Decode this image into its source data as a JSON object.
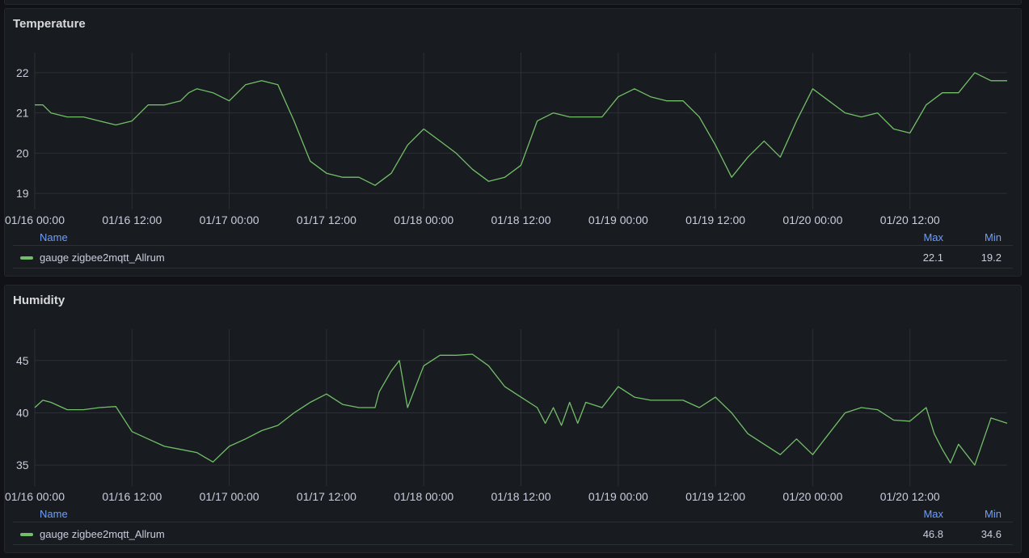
{
  "colors": {
    "series": "#73bf69",
    "grid": "#2c2f36",
    "text": "#ccccdc",
    "legend_header": "#6e9fff"
  },
  "legend_headers": {
    "name": "Name",
    "max": "Max",
    "min": "Min"
  },
  "chart_data": [
    {
      "type": "line",
      "title": "Temperature",
      "x_ticks": [
        "01/16 00:00",
        "01/16 12:00",
        "01/17 00:00",
        "01/17 12:00",
        "01/18 00:00",
        "01/18 12:00",
        "01/19 00:00",
        "01/19 12:00",
        "01/20 00:00",
        "01/20 12:00"
      ],
      "y_ticks": [
        19,
        20,
        21,
        22
      ],
      "ylim": [
        18.6,
        22.5
      ],
      "xlim": [
        0,
        120
      ],
      "grid": true,
      "legend_placement": "bottom",
      "series": [
        {
          "name": "gauge zigbee2mqtt_Allrum",
          "max": "22.1",
          "min": "19.2",
          "x": [
            0,
            1,
            2,
            4,
            6,
            8,
            10,
            12,
            14,
            16,
            18,
            19,
            20,
            22,
            24,
            26,
            28,
            30,
            32,
            34,
            36,
            38,
            40,
            42,
            44,
            46,
            48,
            50,
            52,
            54,
            56,
            58,
            60,
            62,
            64,
            66,
            68,
            70,
            72,
            74,
            76,
            78,
            80,
            82,
            84,
            86,
            88,
            90,
            92,
            94,
            96,
            98,
            100,
            102,
            104,
            106,
            108,
            110,
            112,
            114,
            116,
            118,
            120
          ],
          "y": [
            21.2,
            21.2,
            21.0,
            20.9,
            20.9,
            20.8,
            20.7,
            20.8,
            21.2,
            21.2,
            21.3,
            21.5,
            21.6,
            21.5,
            21.3,
            21.7,
            21.8,
            21.7,
            20.8,
            19.8,
            19.5,
            19.4,
            19.4,
            19.2,
            19.5,
            20.2,
            20.6,
            20.3,
            20.0,
            19.6,
            19.3,
            19.4,
            19.7,
            20.8,
            21.0,
            20.9,
            20.9,
            20.9,
            21.4,
            21.6,
            21.4,
            21.3,
            21.3,
            20.9,
            20.2,
            19.4,
            19.9,
            20.3,
            19.9,
            20.8,
            21.6,
            21.3,
            21.0,
            20.9,
            21.0,
            20.6,
            20.5,
            21.2,
            21.5,
            21.5,
            22.0,
            21.8,
            21.8
          ]
        }
      ]
    },
    {
      "type": "line",
      "title": "Humidity",
      "x_ticks": [
        "01/16 00:00",
        "01/16 12:00",
        "01/17 00:00",
        "01/17 12:00",
        "01/18 00:00",
        "01/18 12:00",
        "01/19 00:00",
        "01/19 12:00",
        "01/20 00:00",
        "01/20 12:00"
      ],
      "y_ticks": [
        35,
        40,
        45
      ],
      "ylim": [
        33.0,
        48.0
      ],
      "xlim": [
        0,
        120
      ],
      "grid": true,
      "legend_placement": "bottom",
      "series": [
        {
          "name": "gauge zigbee2mqtt_Allrum",
          "max": "46.8",
          "min": "34.6",
          "x": [
            0,
            1,
            2,
            4,
            6,
            8,
            10,
            12,
            14,
            16,
            18,
            20,
            22,
            24,
            26,
            28,
            30,
            32,
            34,
            36,
            38,
            40,
            42,
            42.5,
            44,
            45,
            46,
            48,
            50,
            52,
            54,
            56,
            58,
            60,
            62,
            63,
            64,
            65,
            66,
            67,
            68,
            70,
            72,
            74,
            76,
            78,
            80,
            82,
            84,
            86,
            88,
            90,
            92,
            94,
            96,
            98,
            100,
            102,
            104,
            106,
            108,
            110,
            111,
            112,
            113,
            114,
            116,
            118,
            120
          ],
          "y": [
            40.5,
            41.2,
            41.0,
            40.3,
            40.3,
            40.5,
            40.6,
            38.2,
            37.5,
            36.8,
            36.5,
            36.2,
            35.3,
            36.8,
            37.5,
            38.3,
            38.8,
            40.0,
            41.0,
            41.8,
            40.8,
            40.5,
            40.5,
            42.0,
            44.0,
            45.0,
            40.5,
            44.5,
            45.5,
            45.5,
            45.6,
            44.5,
            42.5,
            41.5,
            40.5,
            39.0,
            40.5,
            38.8,
            41.0,
            39.0,
            41.0,
            40.5,
            42.5,
            41.5,
            41.2,
            41.2,
            41.2,
            40.5,
            41.5,
            40.0,
            38.0,
            37.0,
            36.0,
            37.5,
            36.0,
            38.0,
            40.0,
            40.5,
            40.3,
            39.3,
            39.2,
            40.5,
            38.0,
            36.5,
            35.2,
            37.0,
            35.0,
            39.5,
            39.0
          ]
        }
      ]
    }
  ]
}
